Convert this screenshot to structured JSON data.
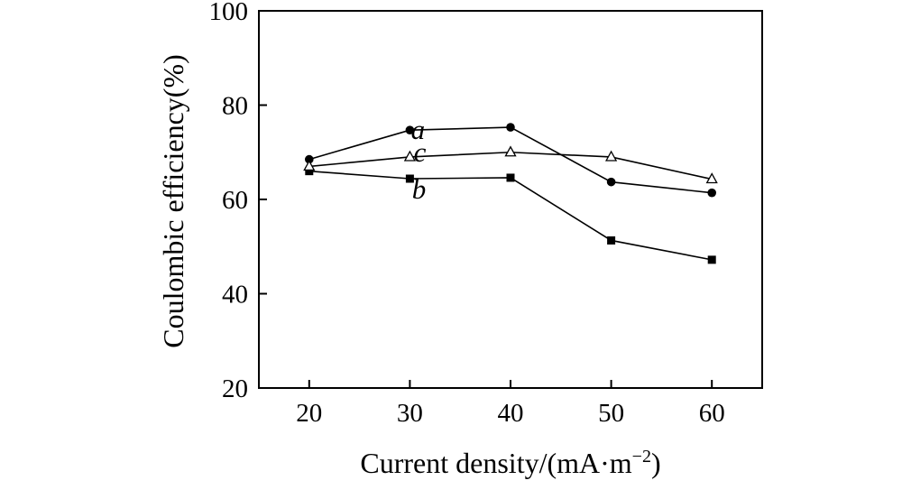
{
  "chart_data": {
    "type": "line",
    "xlabel": "Current density/(mA·m",
    "xlabel_sup": "−2",
    "xlabel_close": ")",
    "ylabel": "Coulombic efficiency(%)",
    "x": [
      20,
      30,
      40,
      50,
      60
    ],
    "xlim": [
      15,
      65
    ],
    "ylim": [
      20,
      100
    ],
    "xticks": [
      20,
      30,
      40,
      50,
      60
    ],
    "yticks": [
      20,
      40,
      60,
      80,
      100
    ],
    "grid": false,
    "series": [
      {
        "name": "a",
        "marker": "filled-circle",
        "values": [
          68.5,
          74.7,
          75.3,
          63.7,
          61.4
        ],
        "label_at": [
          30.8,
          74.7
        ]
      },
      {
        "name": "b",
        "marker": "filled-square",
        "values": [
          66.0,
          64.4,
          64.6,
          51.3,
          47.2
        ],
        "label_at": [
          30.9,
          62.1
        ]
      },
      {
        "name": "c",
        "marker": "open-triangle",
        "values": [
          67.0,
          69.0,
          70.0,
          69.0,
          64.3
        ],
        "label_at": [
          31.0,
          70.0
        ]
      }
    ]
  }
}
